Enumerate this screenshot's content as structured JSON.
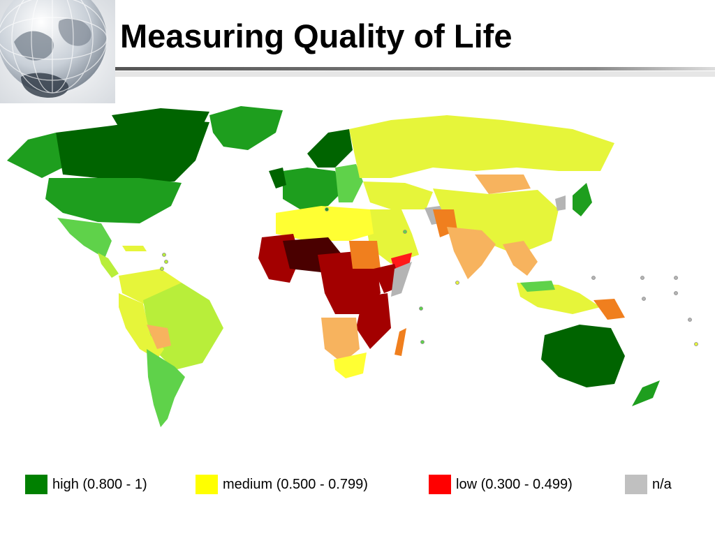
{
  "slide": {
    "title": "Measuring Quality of Life"
  },
  "legend": {
    "items": [
      {
        "label": "high (0.800 - 1)",
        "color": "#008000"
      },
      {
        "label": "medium (0.500 - 0.799)",
        "color": "#ffff00"
      },
      {
        "label": "low (0.300 - 0.499)",
        "color": "#ff0000"
      },
      {
        "label": "n/a",
        "color": "#c0c0c0"
      }
    ]
  },
  "map": {
    "type": "choropleth",
    "colors": {
      "very_high": "#006400",
      "high": "#1e9e1e",
      "high_light": "#5fd24a",
      "medium_high": "#b8ee3a",
      "medium": "#e6f53a",
      "medium_yellow": "#ffff33",
      "medium_low": "#f7b35e",
      "low_orange": "#f07f1e",
      "low": "#ff1a1a",
      "very_low": "#a30000",
      "lowest": "#4a0000",
      "na": "#b4b4b4"
    }
  }
}
